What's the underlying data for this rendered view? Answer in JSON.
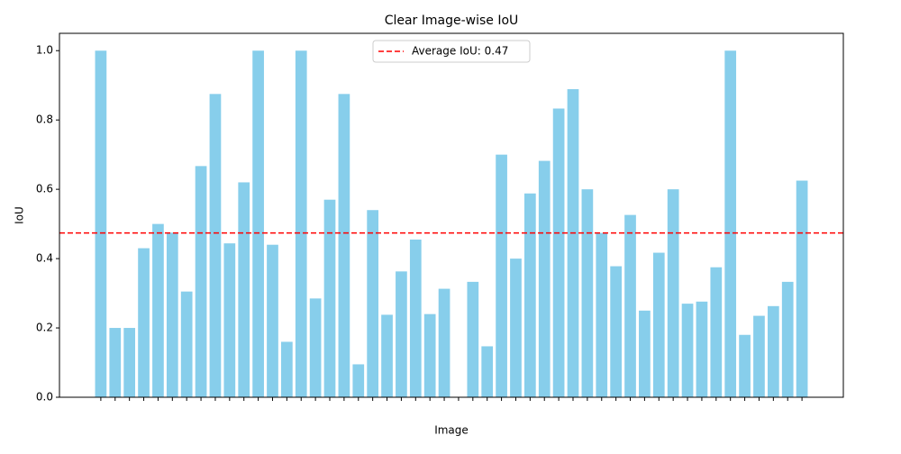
{
  "chart_data": {
    "type": "bar",
    "title": "Clear Image-wise IoU",
    "x_label": "Image",
    "y_label": "IoU",
    "categories": [
      null,
      null,
      null,
      null,
      null,
      null,
      null,
      null,
      null,
      null,
      null,
      null,
      null,
      null,
      null,
      null,
      null,
      null,
      null,
      null,
      null,
      null,
      null,
      null,
      null,
      null,
      null,
      null,
      null,
      null,
      null,
      null,
      null,
      null,
      null,
      null,
      null,
      null,
      null,
      null,
      null,
      null,
      null,
      null,
      null,
      null,
      null,
      null,
      null,
      null
    ],
    "values": [
      1.0,
      0.2,
      0.2,
      0.43,
      0.5,
      0.475,
      0.305,
      0.667,
      0.875,
      0.444,
      0.62,
      1.0,
      0.44,
      0.16,
      1.0,
      0.285,
      0.57,
      0.875,
      0.095,
      0.54,
      0.238,
      0.363,
      0.455,
      0.24,
      0.313,
      0,
      0.333,
      0.147,
      0.7,
      0.4,
      0.588,
      0.682,
      0.833,
      0.889,
      0.6,
      0.474,
      0.378,
      0.526,
      0.25,
      0.417,
      0.6,
      0.27,
      0.276,
      0.375,
      1.0,
      0.18,
      0.235,
      0.263,
      0.333,
      0.625
    ],
    "color": "#87ceeb",
    "average": {
      "value": 0.474,
      "label": "Average IoU: 0.47",
      "color": "#ff0000"
    },
    "legend": "upper center",
    "ylim": [
      0,
      1.05
    ],
    "yticks": [
      {
        "value": 0,
        "label": "0.0"
      },
      {
        "value": 0.2,
        "label": "0.2"
      },
      {
        "value": 0.4,
        "label": "0.4"
      },
      {
        "value": 0.6,
        "label": "0.6"
      },
      {
        "value": 0.8,
        "label": "0.8"
      },
      {
        "value": 1.0,
        "label": "1.0"
      }
    ]
  }
}
